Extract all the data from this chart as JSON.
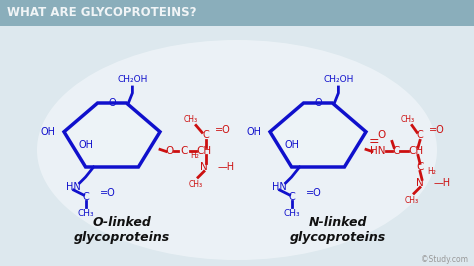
{
  "title": "WHAT ARE GLYCOPROTEINS?",
  "title_bg": "#8aaebb",
  "title_color": "#f0f4f6",
  "bg_color": "#dce6ec",
  "bg_center": "#eef2f5",
  "blue": "#1010cc",
  "red": "#cc1010",
  "label_left_1": "O-linked",
  "label_left_2": "glycoproteins",
  "label_right_1": "N-linked",
  "label_right_2": "glycoproteins",
  "watermark": "©Study.com"
}
